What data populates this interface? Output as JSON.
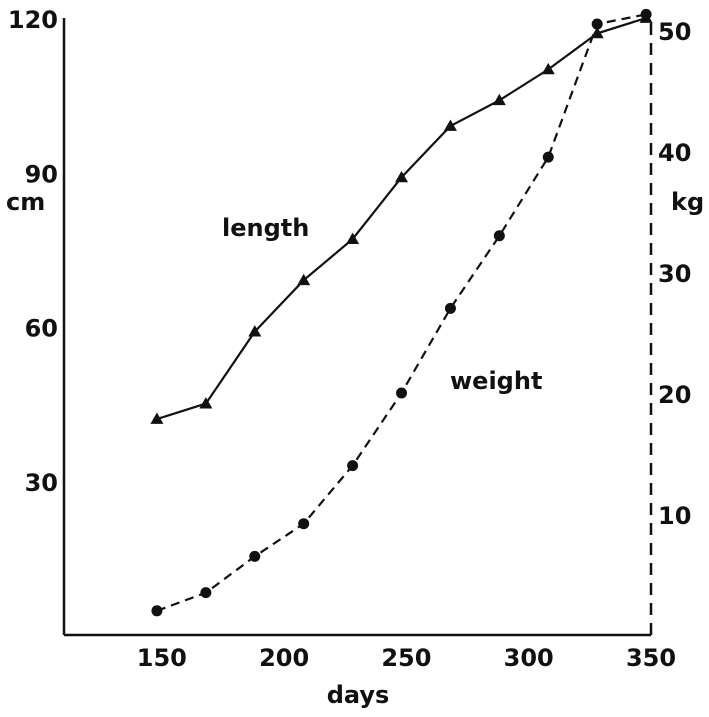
{
  "chart_data": {
    "type": "line",
    "x": [
      148,
      168,
      188,
      208,
      228,
      248,
      268,
      288,
      308,
      328,
      348
    ],
    "xlabel": "days",
    "xlim": [
      110,
      350
    ],
    "x_ticks": [
      "150",
      "200",
      "250",
      "300",
      "350"
    ],
    "ylabel_left": "cm",
    "ylim_left": [
      0,
      120
    ],
    "y_ticks_left": [
      "30",
      "60",
      "90",
      "120"
    ],
    "ylabel_right": "kg",
    "ylim_right": [
      0,
      51
    ],
    "y_ticks_right": [
      "10",
      "20",
      "30",
      "40",
      "50"
    ],
    "grid": false,
    "series": [
      {
        "name": "length",
        "axis": "left",
        "line_style": "solid",
        "marker": "triangle",
        "values": [
          42,
          45,
          59,
          69,
          77,
          89,
          99,
          104,
          110,
          117,
          120
        ]
      },
      {
        "name": "weight",
        "axis": "right",
        "line_style": "dashed",
        "marker": "circle",
        "values": [
          2,
          3.5,
          6.5,
          9.2,
          14,
          20,
          27,
          33,
          39.5,
          50.5,
          51.3
        ]
      }
    ]
  }
}
